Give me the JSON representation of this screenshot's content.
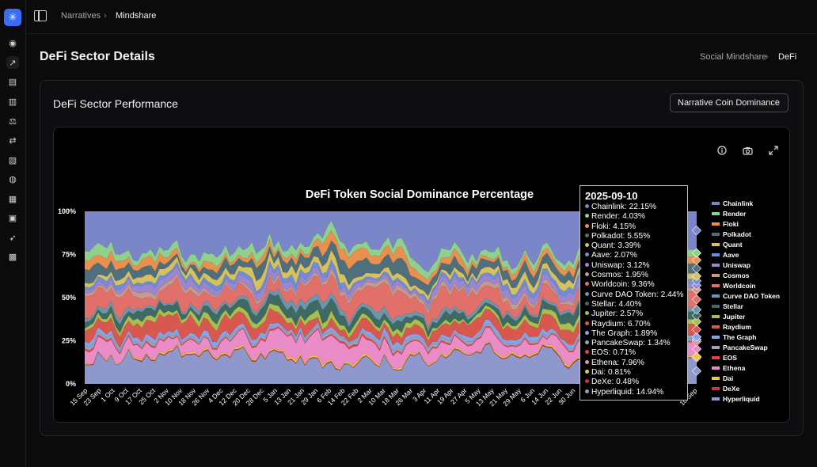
{
  "sidebar": {
    "logo": "✳",
    "icons": [
      "home-icon",
      "trend-icon",
      "news-icon",
      "bar-chart-icon",
      "scale-icon",
      "swap-icon",
      "image-icon",
      "globe-icon",
      "document-icon",
      "apps-icon",
      "rocket-icon",
      "terminal-icon"
    ]
  },
  "topbar": {
    "crumb1": "Narratives",
    "sep": "›",
    "crumb2": "Mindshare"
  },
  "page": {
    "title": "DeFi Sector Details",
    "breadcrumb1": "Social Mindshare",
    "breadcrumb_sep": "›",
    "breadcrumb2": "DeFi",
    "card_title": "DeFi Sector Performance",
    "dropdown_value": "Narrative Coin Dominance",
    "dropdown_chevron": "⌃"
  },
  "chart_data": {
    "type": "area",
    "stacked": true,
    "title": "DeFi Token Social Dominance Percentage",
    "ylim": [
      0,
      100
    ],
    "yticks": [
      "100%",
      "75%",
      "50%",
      "25%",
      "0%"
    ],
    "x_ticks": [
      "15 Sep",
      "23 Sep",
      "1 Oct",
      "9 Oct",
      "17 Oct",
      "25 Oct",
      "2 Nov",
      "10 Nov",
      "18 Nov",
      "26 Nov",
      "4 Dec",
      "12 Dec",
      "20 Dec",
      "28 Dec",
      "5 Jan",
      "13 Jan",
      "21 Jan",
      "29 Jan",
      "6 Feb",
      "14 Feb",
      "22 Feb",
      "2 Mar",
      "10 Mar",
      "18 Mar",
      "26 Mar",
      "3 Apr",
      "11 Apr",
      "19 Apr",
      "27 Apr",
      "5 May",
      "13 May",
      "21 May",
      "29 May",
      "6 Jun",
      "14 Jun",
      "22 Jun",
      "30 Jun",
      "8",
      "16",
      "24",
      "1",
      "9",
      "17",
      "25",
      "2",
      "10 Sep"
    ],
    "legend_position": "right",
    "series": [
      {
        "name": "Chainlink",
        "color": "#7a86c8",
        "value": 22.15
      },
      {
        "name": "Render",
        "color": "#8fd08c",
        "value": 4.03
      },
      {
        "name": "Floki",
        "color": "#e9904f",
        "value": 4.15
      },
      {
        "name": "Polkadot",
        "color": "#4f6f7d",
        "value": 5.55
      },
      {
        "name": "Quant",
        "color": "#d7c15f",
        "value": 3.39
      },
      {
        "name": "Aave",
        "color": "#6b8fd8",
        "value": 2.07
      },
      {
        "name": "Uniswap",
        "color": "#9c86cf",
        "value": 3.12
      },
      {
        "name": "Cosmos",
        "color": "#c49a8a",
        "value": 1.95
      },
      {
        "name": "Worldcoin",
        "color": "#e2706a",
        "value": 9.36
      },
      {
        "name": "Curve DAO Token",
        "color": "#6a97ad",
        "value": 2.44
      },
      {
        "name": "Stellar",
        "color": "#3f6a63",
        "value": 4.4
      },
      {
        "name": "Jupiter",
        "color": "#a8bf4d",
        "value": 2.57
      },
      {
        "name": "Raydium",
        "color": "#d8584f",
        "value": 6.7
      },
      {
        "name": "The Graph",
        "color": "#8aa3e6",
        "value": 1.89
      },
      {
        "name": "PancakeSwap",
        "color": "#9aa3b5",
        "value": 1.34
      },
      {
        "name": "EOS",
        "color": "#ea3f43",
        "value": 0.71
      },
      {
        "name": "Ethena",
        "color": "#e98cc7",
        "value": 7.96
      },
      {
        "name": "Dai",
        "color": "#e8c93f",
        "value": 0.81
      },
      {
        "name": "DeXe",
        "color": "#c0394d",
        "value": 0.48
      },
      {
        "name": "Hyperliquid",
        "color": "#8f98cc",
        "value": 14.94
      }
    ],
    "tooltip": {
      "date": "2025-09-10",
      "rows": [
        "Chainlink: 22.15%",
        "Render: 4.03%",
        "Floki: 4.15%",
        "Polkadot: 5.55%",
        "Quant: 3.39%",
        "Aave: 2.07%",
        "Uniswap: 3.12%",
        "Cosmos: 1.95%",
        "Worldcoin: 9.36%",
        "Curve DAO Token: 2.44%",
        "Stellar: 4.40%",
        "Jupiter: 2.57%",
        "Raydium: 6.70%",
        "The Graph: 1.89%",
        "PancakeSwap: 1.34%",
        "EOS: 0.71%",
        "Ethena: 7.96%",
        "Dai: 0.81%",
        "DeXe: 0.48%",
        "Hyperliquid: 14.94%"
      ]
    }
  }
}
